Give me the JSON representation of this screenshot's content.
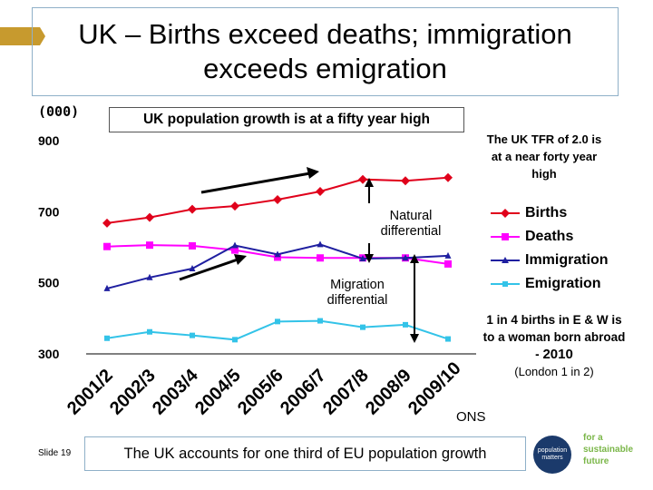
{
  "slide": {
    "title": "UK – Births exceed deaths; immigration exceeds emigration",
    "unit_label": "(000)",
    "subtitle": "UK population growth is at a fifty year high",
    "tfr_note": "The UK TFR of 2.0 is at a near forty year high",
    "birth_note_line": "1 in 4 births in E & W is to a woman born abroad -",
    "birth_note_year": "2010",
    "birth_note_london": "(London 1 in 2)",
    "source": "ONS",
    "slide_number": "Slide 19",
    "footer": "The UK accounts for one third of EU population growth",
    "logo_badge": "population matters",
    "logo_text": "for a sustainable future"
  },
  "colors": {
    "births": "#e0001b",
    "deaths": "#ff00ff",
    "immigration": "#1f1fa0",
    "emigration": "#33c3e8",
    "accent": "#c79a2e",
    "frame": "#8fb0c8"
  },
  "chart_data": {
    "type": "line",
    "categories": [
      "2001/2",
      "2002/3",
      "2003/4",
      "2004/5",
      "2005/6",
      "2006/7",
      "2007/8",
      "2008/9",
      "2009/10"
    ],
    "ylim": [
      300,
      900
    ],
    "yticks": [
      "900",
      "700",
      "500",
      "300"
    ],
    "ytick_values": [
      900,
      700,
      500,
      300
    ],
    "legend_position": "right",
    "series": [
      {
        "name": "Births",
        "color_key": "births",
        "marker": "diamond",
        "values": [
          668,
          684,
          707,
          716,
          734,
          757,
          791,
          787,
          796
        ]
      },
      {
        "name": "Deaths",
        "color_key": "deaths",
        "marker": "square",
        "values": [
          602,
          606,
          604,
          592,
          572,
          570,
          570,
          570,
          553
        ]
      },
      {
        "name": "Immigration",
        "color_key": "immigration",
        "marker": "triangle",
        "values": [
          484,
          515,
          540,
          605,
          580,
          608,
          568,
          570,
          576
        ]
      },
      {
        "name": "Emigration",
        "color_key": "emigration",
        "marker": "square",
        "values": [
          344,
          362,
          352,
          340,
          391,
          393,
          375,
          382,
          342
        ]
      }
    ],
    "annotations": {
      "natural": "Natural differential",
      "migration": "Migration differential"
    }
  }
}
